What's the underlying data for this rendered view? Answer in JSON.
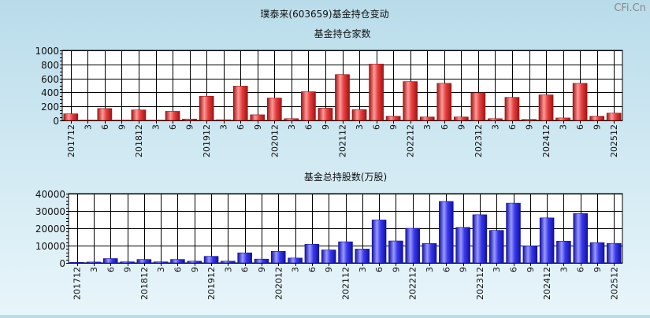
{
  "title": "璞泰来(603659)基金持仓变动",
  "watermark": "CFi.Cn",
  "colors": {
    "chart1_bar": "#e8403f",
    "chart1_bar_dark": "#9e1414",
    "chart1_bar_light": "#ff9a98",
    "chart2_bar": "#3a3aee",
    "chart2_bar_dark": "#1010a0",
    "chart2_bar_light": "#9a9aff",
    "plot_bg": "#ffffff",
    "grid": "#000000"
  },
  "chart_data": [
    {
      "type": "bar",
      "title": "基金持仓家数",
      "xlabel": "",
      "ylabel": "",
      "ylim": [
        0,
        1000
      ],
      "yticks": [
        "0",
        "200",
        "400",
        "600",
        "800",
        "1000"
      ],
      "ytick_values": [
        0,
        200,
        400,
        600,
        800,
        1000
      ],
      "grid": true,
      "categories": [
        "201712",
        "3",
        "6",
        "9",
        "201812",
        "3",
        "6",
        "9",
        "201912",
        "3",
        "6",
        "9",
        "202012",
        "3",
        "6",
        "9",
        "202112",
        "3",
        "6",
        "9",
        "202212",
        "3",
        "6",
        "9",
        "202312",
        "3",
        "6",
        "9",
        "202412",
        "3",
        "6",
        "9",
        "202512"
      ],
      "values": [
        95,
        5,
        170,
        5,
        150,
        5,
        130,
        20,
        345,
        10,
        490,
        80,
        320,
        25,
        410,
        175,
        655,
        155,
        805,
        60,
        555,
        50,
        530,
        50,
        395,
        25,
        330,
        15,
        365,
        35,
        530,
        60,
        105
      ]
    },
    {
      "type": "bar",
      "title": "基金总持股数(万股)",
      "xlabel": "",
      "ylabel": "",
      "ylim": [
        0,
        40000
      ],
      "yticks": [
        "0",
        "10000",
        "20000",
        "30000",
        "40000"
      ],
      "ytick_values": [
        0,
        10000,
        20000,
        30000,
        40000
      ],
      "grid": true,
      "categories": [
        "201712",
        "3",
        "6",
        "9",
        "201812",
        "3",
        "6",
        "9",
        "201912",
        "3",
        "6",
        "9",
        "202012",
        "3",
        "6",
        "9",
        "202112",
        "3",
        "6",
        "9",
        "202212",
        "3",
        "6",
        "9",
        "202312",
        "3",
        "6",
        "9",
        "202412",
        "3",
        "6",
        "9",
        "202512"
      ],
      "values": [
        300,
        500,
        2500,
        600,
        2000,
        600,
        2000,
        1000,
        3800,
        1000,
        5800,
        2200,
        6700,
        2800,
        10800,
        7500,
        12200,
        8000,
        24800,
        12700,
        20000,
        11200,
        35500,
        20500,
        27800,
        18800,
        34500,
        9800,
        26000,
        12600,
        28500,
        11700,
        11300
      ]
    }
  ]
}
